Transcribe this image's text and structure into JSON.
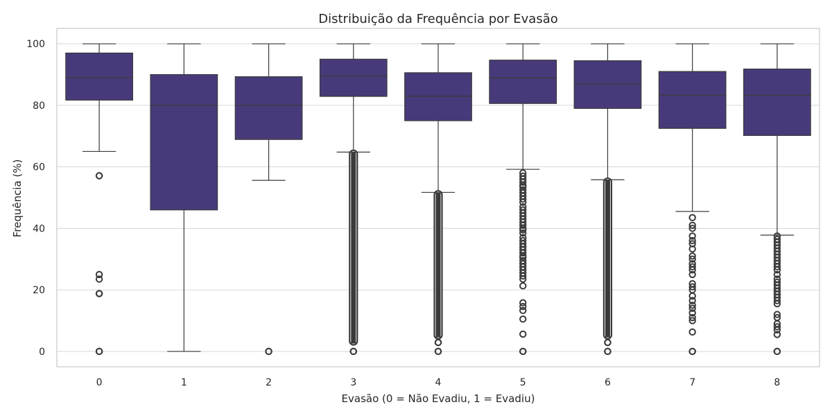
{
  "chart_data": {
    "type": "box",
    "title": "Distribuição da Frequência por Evasão",
    "xlabel": "Evasão (0 = Não Evadiu, 1 = Evadiu)",
    "ylabel": "Frequência (%)",
    "ylim": [
      -5,
      105
    ],
    "yticks": [
      0,
      20,
      40,
      60,
      80,
      100
    ],
    "grid": true,
    "colors": {
      "box": "#483a7a",
      "line": "#3a3a3a",
      "grid": "#d6d6d6",
      "frame": "#c8c8c8"
    },
    "categories": [
      "0",
      "1",
      "2",
      "3",
      "4",
      "5",
      "6",
      "7",
      "8"
    ],
    "boxes": [
      {
        "category": "0",
        "whislo": 65,
        "q1": 81.7,
        "med": 89,
        "q3": 97,
        "whishi": 100,
        "fliers": [
          57.1,
          57.1,
          25,
          23.5,
          18.8,
          18.8,
          0,
          0
        ]
      },
      {
        "category": "1",
        "whislo": 0,
        "q1": 46,
        "med": 80,
        "q3": 90,
        "whishi": 100,
        "fliers": []
      },
      {
        "category": "2",
        "whislo": 55.6,
        "q1": 68.9,
        "med": 80,
        "q3": 89.3,
        "whishi": 100,
        "fliers": [
          0,
          0
        ]
      },
      {
        "category": "3",
        "whislo": 64.8,
        "q1": 82.9,
        "med": 89.5,
        "q3": 95,
        "whishi": 100,
        "fliers": [
          0,
          0
        ],
        "flier_band": [
          3,
          64.5
        ]
      },
      {
        "category": "4",
        "whislo": 51.7,
        "q1": 75,
        "med": 83,
        "q3": 90.6,
        "whishi": 100,
        "fliers": [
          0,
          0,
          2.9,
          2.9
        ],
        "flier_band": [
          5,
          51.3
        ]
      },
      {
        "category": "5",
        "whislo": 59.2,
        "q1": 80.6,
        "med": 88.9,
        "q3": 94.7,
        "whishi": 100,
        "fliers": [
          58,
          57,
          56,
          55,
          54,
          53.5,
          52.5,
          51.5,
          50.5,
          49.5,
          48.5,
          47,
          46,
          45,
          44,
          43,
          42,
          41,
          40,
          39.5,
          38.5,
          37,
          36,
          35,
          34,
          33,
          32,
          31,
          30.5,
          29.5,
          28.5,
          27.5,
          26.5,
          25.5,
          24.5,
          23.5,
          21.3,
          15.8,
          14.6,
          13.3,
          10.5,
          5.6,
          0,
          0
        ]
      },
      {
        "category": "6",
        "whislo": 55.8,
        "q1": 79,
        "med": 87,
        "q3": 94.5,
        "whishi": 100,
        "fliers": [
          0,
          0,
          2.9,
          2.9
        ],
        "flier_band": [
          5,
          55.4
        ]
      },
      {
        "category": "7",
        "whislo": 45.5,
        "q1": 72.5,
        "med": 83.3,
        "q3": 91,
        "whishi": 100,
        "fliers": [
          43.5,
          41,
          40,
          37.5,
          36,
          35,
          33.3,
          31,
          30,
          28.5,
          27.5,
          26.5,
          25,
          22,
          21,
          20,
          18,
          16.5,
          15,
          14,
          12.5,
          11,
          10,
          6.3,
          0,
          0
        ]
      },
      {
        "category": "8",
        "whislo": 37.8,
        "q1": 70.2,
        "med": 83.3,
        "q3": 91.8,
        "whishi": 100,
        "fliers": [
          37.5,
          36.5,
          35.5,
          34.5,
          33.5,
          32.5,
          31.5,
          30.5,
          29.5,
          28.5,
          27.5,
          26.5,
          25,
          23.5,
          22.5,
          21.5,
          20.5,
          19.5,
          18.5,
          17.5,
          16.5,
          15.5,
          12,
          11,
          9,
          8,
          7,
          5.5,
          0,
          0
        ]
      }
    ]
  }
}
